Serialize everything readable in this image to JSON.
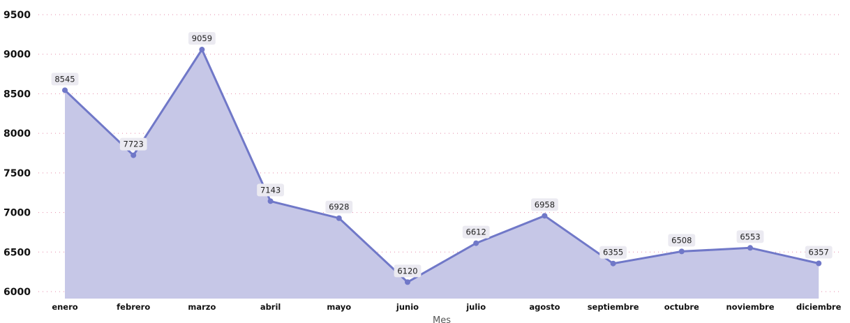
{
  "chart_data": {
    "type": "area",
    "categories": [
      "enero",
      "febrero",
      "marzo",
      "abril",
      "mayo",
      "junio",
      "julio",
      "agosto",
      "septiembre",
      "octubre",
      "noviembre",
      "diciembre"
    ],
    "series": [
      {
        "values": [
          8545,
          7723,
          9059,
          7143,
          6928,
          6120,
          6612,
          6958,
          6355,
          6508,
          6553,
          6357
        ]
      }
    ],
    "title": "",
    "xlabel": "Mes",
    "ylabel": "",
    "ylim": [
      6000,
      9500
    ],
    "yticks": [
      "6000",
      "6500",
      "7000",
      "7500",
      "8000",
      "8500",
      "9000",
      "9500"
    ],
    "grid": true,
    "data_labels": true,
    "colors": {
      "line": "#7078c8",
      "fill": "#c6c7e7",
      "grid": "#e58aa8"
    }
  }
}
